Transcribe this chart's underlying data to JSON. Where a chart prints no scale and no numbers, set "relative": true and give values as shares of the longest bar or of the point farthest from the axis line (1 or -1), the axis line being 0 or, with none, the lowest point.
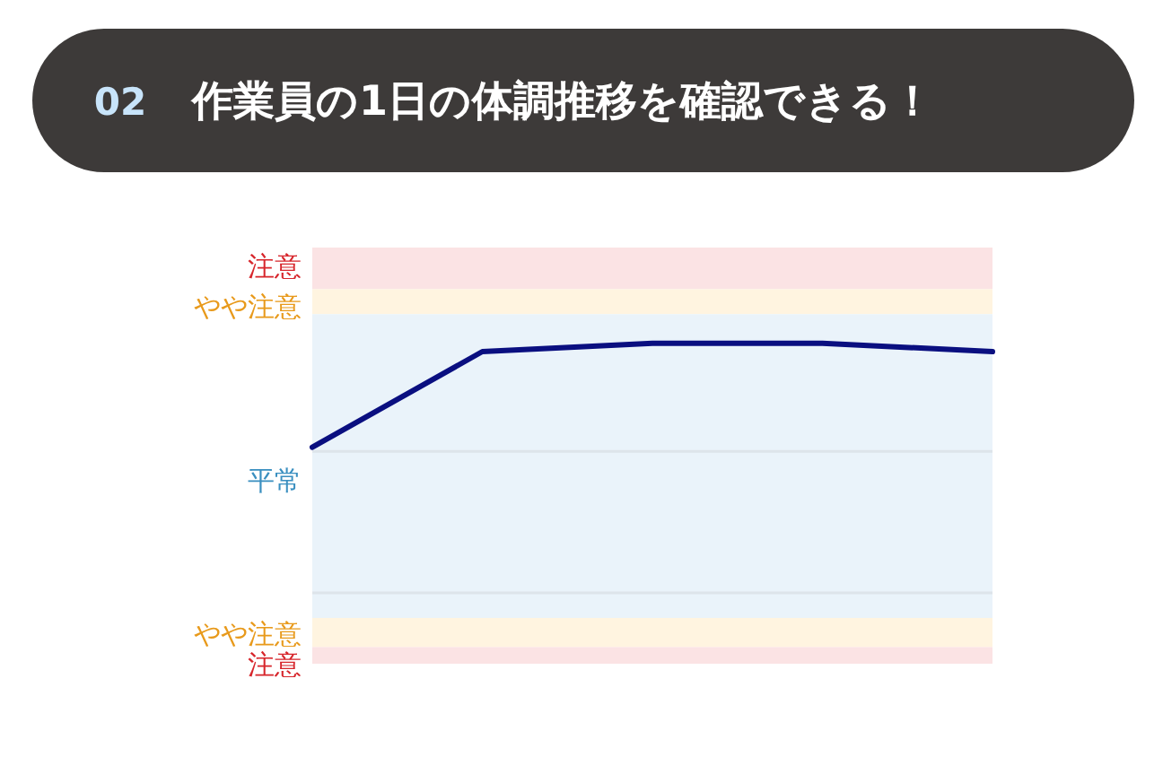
{
  "chart_data": {
    "type": "line",
    "title": "作業員の1日の体調推移を確認できる！",
    "annotations": [
      "02"
    ],
    "categories": [
      null,
      null,
      null,
      null,
      null
    ],
    "relative": true,
    "series": [
      {
        "color": "#0a0f80",
        "values": [
          0,
          0.92,
          1,
          1,
          0.92
        ]
      }
    ],
    "bands": [
      {
        "axis": "y",
        "from": 1.52,
        "to": 1.92,
        "label": "注意",
        "color": "#fbe3e4"
      },
      {
        "axis": "y",
        "from": 1.28,
        "to": 1.52,
        "label": "やや注意",
        "color": "#fff4e0"
      },
      {
        "axis": "y",
        "from": -1.64,
        "to": 1.28,
        "label": "平常",
        "color": "#eaf3fa"
      },
      {
        "axis": "y",
        "from": -1.92,
        "to": -1.64,
        "label": "やや注意",
        "color": "#fff4e0"
      },
      {
        "axis": "y",
        "from": -2.08,
        "to": -1.92,
        "label": "注意",
        "color": "#fbe3e4"
      }
    ],
    "ref_lines": [
      {
        "axis": "y",
        "value": -0.04,
        "color": "#dde4ea"
      },
      {
        "axis": "y",
        "value": -1.4,
        "color": "#dde4ea"
      }
    ],
    "line_style": "solid"
  }
}
